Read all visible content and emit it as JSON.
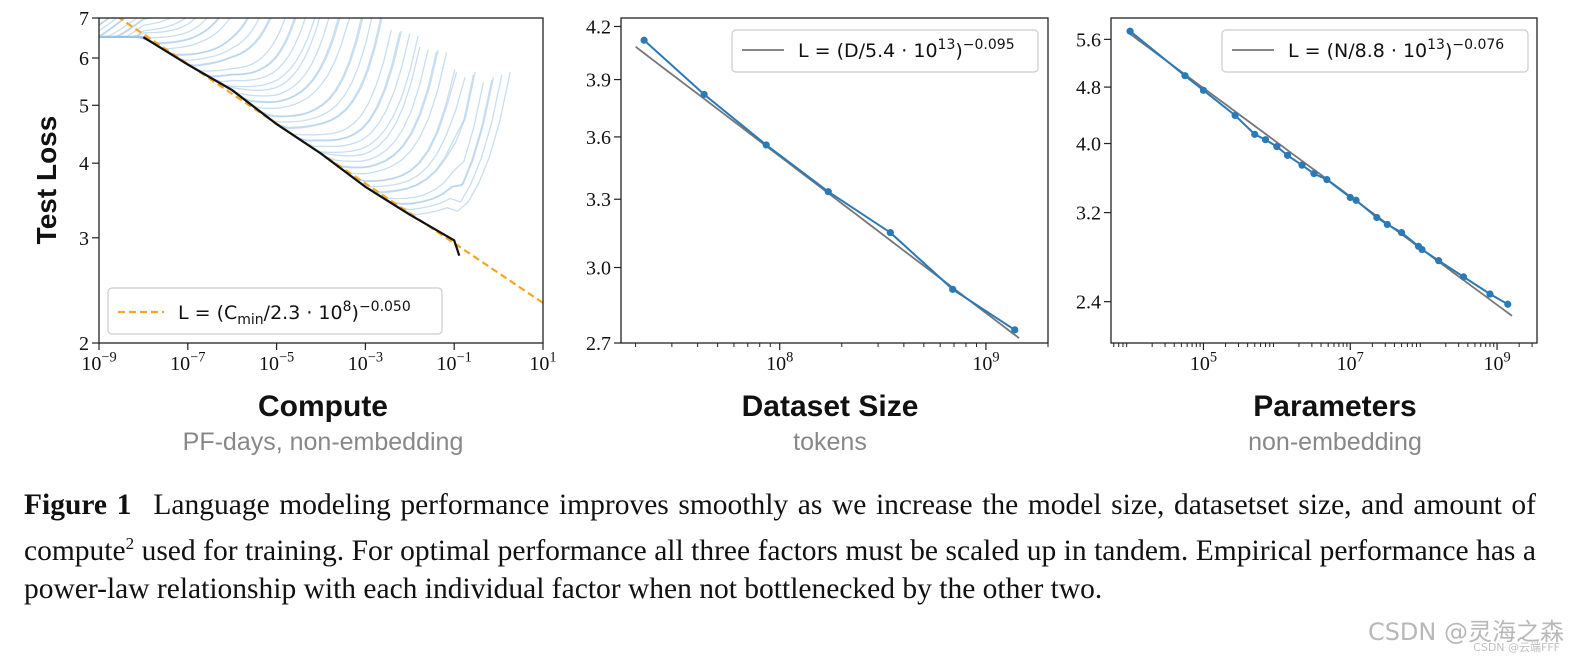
{
  "chart_data": [
    {
      "type": "line",
      "id": "compute",
      "xlabel": "Compute",
      "xsublabel": "PF-days, non-embedding",
      "ylabel": "Test Loss",
      "xscale": "log",
      "yscale": "log",
      "xlim": [
        1e-09,
        10
      ],
      "ylim": [
        2,
        7
      ],
      "xticks": [
        1e-09,
        1e-07,
        1e-05,
        0.001,
        0.1,
        10
      ],
      "xtick_labels": [
        [
          "10",
          "−9"
        ],
        [
          "10",
          "−7"
        ],
        [
          "10",
          "−5"
        ],
        [
          "10",
          "−3"
        ],
        [
          "10",
          "−1"
        ],
        [
          "10",
          "1"
        ]
      ],
      "yticks": [
        2,
        3,
        4,
        5,
        6,
        7
      ],
      "ytick_labels": [
        "2",
        "3",
        "4",
        "5",
        "6",
        "7"
      ],
      "fit": {
        "scale": 230000000.0,
        "exponent": 0.05,
        "color": "#f5a623"
      },
      "frontier": {
        "x": [
          1e-08,
          1e-07,
          1e-06,
          1e-05,
          0.0001,
          0.001,
          0.01,
          0.1,
          0.13
        ],
        "y": [
          6.5,
          5.85,
          5.3,
          4.65,
          4.15,
          3.65,
          3.28,
          2.97,
          2.8
        ]
      },
      "legend": {
        "position": "lower-left",
        "label_prefix": "L = (C",
        "label_sub": "min",
        "label_mid": "/2.3 · 10",
        "label_exp1": "8",
        "label_suffix": ")",
        "label_exp2": "−0.050"
      }
    },
    {
      "type": "line",
      "id": "dataset",
      "xlabel": "Dataset Size",
      "xsublabel": "tokens",
      "xscale": "log",
      "yscale": "log",
      "xlim": [
        17000000.0,
        2000000000.0
      ],
      "ylim": [
        2.7,
        4.25
      ],
      "xticks": [
        100000000.0,
        1000000000.0
      ],
      "xtick_labels": [
        [
          "10",
          "8"
        ],
        [
          "10",
          "9"
        ]
      ],
      "yticks": [
        2.7,
        3.0,
        3.3,
        3.6,
        3.9,
        4.2
      ],
      "ytick_labels": [
        "2.7",
        "3.0",
        "3.3",
        "3.6",
        "3.9",
        "4.2"
      ],
      "series": [
        {
          "name": "data",
          "x": [
            22000000.0,
            43000000.0,
            86000000.0,
            172000000.0,
            344000000.0,
            690000000.0,
            1380000000.0
          ],
          "y": [
            4.12,
            3.82,
            3.56,
            3.335,
            3.15,
            2.91,
            2.75
          ]
        }
      ],
      "fit": {
        "scale": 54000000000000.0,
        "exponent": 0.095,
        "color": "#777777"
      },
      "legend": {
        "position": "top-right",
        "label_prefix": "L = (D/5.4 · 10",
        "label_exp1": "13",
        "label_suffix": ")",
        "label_exp2": "−0.095"
      }
    },
    {
      "type": "line",
      "id": "parameters",
      "xlabel": "Parameters",
      "xsublabel": "non-embedding",
      "xscale": "log",
      "yscale": "log",
      "xlim": [
        5500.0,
        3500000000.0
      ],
      "ylim": [
        2.1,
        6.0
      ],
      "xticks": [
        100000.0,
        10000000.0,
        1000000000.0
      ],
      "xtick_labels": [
        [
          "10",
          "5"
        ],
        [
          "10",
          "7"
        ],
        [
          "10",
          "9"
        ]
      ],
      "yticks": [
        2.4,
        3.2,
        4.0,
        4.8,
        5.6
      ],
      "ytick_labels": [
        "2.4",
        "3.2",
        "4.0",
        "4.8",
        "5.6"
      ],
      "series": [
        {
          "name": "data",
          "x": [
            10000.0,
            56000.0,
            100000.0,
            270000.0,
            500000.0,
            700000.0,
            1000000.0,
            1400000.0,
            2200000.0,
            3200000.0,
            4800000.0,
            10000000.0,
            12000000.0,
            23000000.0,
            32000000.0,
            50000000.0,
            85000000.0,
            95000000.0,
            160000000.0,
            350000000.0,
            800000000.0,
            1400000000.0
          ],
          "y": [
            5.75,
            4.98,
            4.75,
            4.38,
            4.12,
            4.05,
            3.96,
            3.85,
            3.73,
            3.63,
            3.56,
            3.36,
            3.33,
            3.15,
            3.08,
            3.0,
            2.87,
            2.84,
            2.74,
            2.6,
            2.46,
            2.38
          ]
        }
      ],
      "fit": {
        "scale": 88000000000000.0,
        "exponent": 0.076,
        "color": "#777777"
      },
      "legend": {
        "position": "top-right",
        "label_prefix": "L = (N/8.8 · 10",
        "label_exp1": "13",
        "label_suffix": ")",
        "label_exp2": "−0.076"
      }
    }
  ],
  "caption": {
    "figure_label": "Figure 1",
    "text": "Language modeling performance improves smoothly as we increase the model size, datasetset size, and amount of compute",
    "footnote_mark": "2",
    "text2": " used for training. For optimal performance all three factors must be scaled up in tandem. Empirical performance has a power-law relationship with each individual factor when not bottlenecked by the other two."
  },
  "watermark": {
    "main": "CSDN @灵海之森",
    "secondary": "CSDN @云端FFF"
  }
}
